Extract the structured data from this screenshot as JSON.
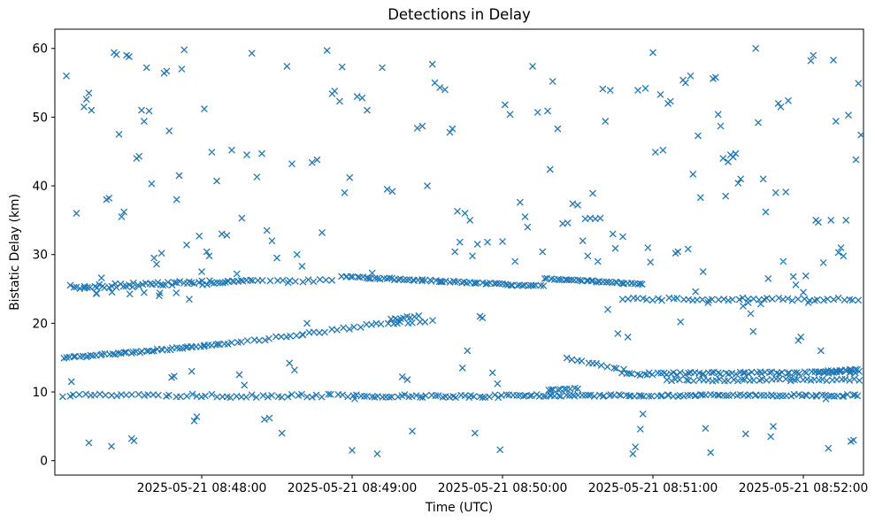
{
  "figure": {
    "background": "#ffffff"
  },
  "chart_data": {
    "type": "scatter",
    "title": "Detections in Delay",
    "xlabel": "Time (UTC)",
    "ylabel": "Bistatic Delay (km)",
    "marker": "x",
    "marker_color": "#1f77b4",
    "grid": false,
    "legend": "none",
    "time_origin": "2025-05-21 08:47:00",
    "xlim_s": [
      1.4,
      324
    ],
    "ylim": [
      -2.1,
      62.8
    ],
    "x_ticks": [
      {
        "t": 60,
        "label": "2025-05-21 08:48:00"
      },
      {
        "t": 120,
        "label": "2025-05-21 08:49:00"
      },
      {
        "t": 180,
        "label": "2025-05-21 08:50:00"
      },
      {
        "t": 240,
        "label": "2025-05-21 08:51:00"
      },
      {
        "t": 300,
        "label": "2025-05-21 08:52:00"
      }
    ],
    "y_ticks": [
      0,
      10,
      20,
      30,
      40,
      50,
      60
    ],
    "streaks": [
      {
        "t0": 5,
        "t1": 58,
        "y0": 9.5,
        "y1": 9.5,
        "n": 26,
        "jitter": 0.2
      },
      {
        "t0": 60,
        "t1": 118,
        "y0": 9.4,
        "y1": 9.5,
        "n": 30,
        "jitter": 0.25
      },
      {
        "t0": 120,
        "t1": 178,
        "y0": 9.4,
        "y1": 9.4,
        "n": 40,
        "jitter": 0.2
      },
      {
        "t0": 180,
        "t1": 238,
        "y0": 9.5,
        "y1": 9.5,
        "n": 45,
        "jitter": 0.15
      },
      {
        "t0": 240,
        "t1": 322,
        "y0": 9.5,
        "y1": 9.5,
        "n": 62,
        "jitter": 0.15
      },
      {
        "t0": 198,
        "t1": 210,
        "y0": 10.3,
        "y1": 10.5,
        "n": 10,
        "jitter": 0.1
      },
      {
        "t0": 5,
        "t1": 70,
        "y0": 14.9,
        "y1": 17.0,
        "n": 55,
        "jitter": 0.12
      },
      {
        "t0": 72,
        "t1": 100,
        "y0": 17.2,
        "y1": 18.3,
        "n": 14,
        "jitter": 0.2
      },
      {
        "t0": 100,
        "t1": 130,
        "y0": 18.4,
        "y1": 19.9,
        "n": 14,
        "jitter": 0.2
      },
      {
        "t0": 132,
        "t1": 152,
        "y0": 20.0,
        "y1": 20.3,
        "n": 9,
        "jitter": 0.15
      },
      {
        "t0": 136,
        "t1": 146,
        "y0": 20.5,
        "y1": 21.0,
        "n": 9,
        "jitter": 0.2
      },
      {
        "t0": 8,
        "t1": 70,
        "y0": 25.3,
        "y1": 26.0,
        "n": 55,
        "jitter": 0.3
      },
      {
        "t0": 70,
        "t1": 80,
        "y0": 26.0,
        "y1": 26.3,
        "n": 10,
        "jitter": 0.1
      },
      {
        "t0": 18,
        "t1": 50,
        "y0": 24.3,
        "y1": 24.6,
        "n": 6,
        "jitter": 0.2
      },
      {
        "t0": 82,
        "t1": 95,
        "y0": 26.2,
        "y1": 26.4,
        "n": 6,
        "jitter": 0.2
      },
      {
        "t0": 95,
        "t1": 112,
        "y0": 26.0,
        "y1": 26.4,
        "n": 8,
        "jitter": 0.2
      },
      {
        "t0": 116,
        "t1": 196,
        "y0": 26.8,
        "y1": 25.4,
        "n": 70,
        "jitter": 0.12
      },
      {
        "t0": 197,
        "t1": 236,
        "y0": 26.5,
        "y1": 25.7,
        "n": 40,
        "jitter": 0.1
      },
      {
        "t0": 228,
        "t1": 322,
        "y0": 23.5,
        "y1": 23.5,
        "n": 48,
        "jitter": 0.2
      },
      {
        "t0": 206,
        "t1": 228,
        "y0": 15.0,
        "y1": 13.2,
        "n": 12,
        "jitter": 0.15
      },
      {
        "t0": 228,
        "t1": 322,
        "y0": 12.6,
        "y1": 12.9,
        "n": 70,
        "jitter": 0.18
      },
      {
        "t0": 246,
        "t1": 322,
        "y0": 11.7,
        "y1": 11.8,
        "n": 45,
        "jitter": 0.15
      },
      {
        "t0": 305,
        "t1": 322,
        "y0": 12.9,
        "y1": 13.3,
        "n": 14,
        "jitter": 0.1
      }
    ],
    "points": [
      [
        6,
        56
      ],
      [
        8,
        11.5
      ],
      [
        10,
        36
      ],
      [
        13,
        51.5
      ],
      [
        14,
        52.6
      ],
      [
        15,
        53.5
      ],
      [
        16,
        51
      ],
      [
        15,
        2.6
      ],
      [
        18,
        24.4
      ],
      [
        20,
        26.6
      ],
      [
        22,
        38
      ],
      [
        23,
        38.2
      ],
      [
        24,
        2.1
      ],
      [
        25,
        59.4
      ],
      [
        26,
        59.1
      ],
      [
        27,
        47.5
      ],
      [
        28,
        35.5
      ],
      [
        29,
        36.2
      ],
      [
        30,
        59
      ],
      [
        31,
        58.8
      ],
      [
        32,
        3.2
      ],
      [
        33,
        2.9
      ],
      [
        34,
        44
      ],
      [
        35,
        44.3
      ],
      [
        36,
        51
      ],
      [
        37,
        49.4
      ],
      [
        38,
        57.2
      ],
      [
        39,
        50.9
      ],
      [
        40,
        40.3
      ],
      [
        41,
        29.5
      ],
      [
        42,
        28.6
      ],
      [
        43,
        24
      ],
      [
        44,
        30.2
      ],
      [
        45,
        56.4
      ],
      [
        46,
        56.7
      ],
      [
        47,
        48
      ],
      [
        48,
        12.1
      ],
      [
        49,
        12.3
      ],
      [
        50,
        38
      ],
      [
        51,
        41.5
      ],
      [
        52,
        57
      ],
      [
        53,
        59.8
      ],
      [
        54,
        31.4
      ],
      [
        55,
        23.5
      ],
      [
        56,
        13
      ],
      [
        57,
        5.8
      ],
      [
        58,
        6.4
      ],
      [
        59,
        32.7
      ],
      [
        60,
        27.5
      ],
      [
        61,
        51.2
      ],
      [
        62,
        30.4
      ],
      [
        63,
        29.8
      ],
      [
        64,
        44.9
      ],
      [
        66,
        40.7
      ],
      [
        68,
        33
      ],
      [
        70,
        32.8
      ],
      [
        72,
        45.2
      ],
      [
        74,
        27.2
      ],
      [
        75,
        12.5
      ],
      [
        76,
        35.3
      ],
      [
        77,
        11
      ],
      [
        78,
        44.5
      ],
      [
        80,
        59.3
      ],
      [
        82,
        41.3
      ],
      [
        84,
        44.7
      ],
      [
        85,
        6
      ],
      [
        86,
        33.5
      ],
      [
        87,
        6.2
      ],
      [
        88,
        32
      ],
      [
        90,
        29.5
      ],
      [
        92,
        4
      ],
      [
        94,
        57.4
      ],
      [
        95,
        14.2
      ],
      [
        96,
        43.2
      ],
      [
        97,
        13.2
      ],
      [
        98,
        30
      ],
      [
        100,
        28.3
      ],
      [
        102,
        20
      ],
      [
        104,
        43.4
      ],
      [
        106,
        43.8
      ],
      [
        108,
        33.2
      ],
      [
        110,
        59.7
      ],
      [
        112,
        53.4
      ],
      [
        113,
        53.8
      ],
      [
        115,
        52.3
      ],
      [
        116,
        57.3
      ],
      [
        117,
        39
      ],
      [
        119,
        41.2
      ],
      [
        120,
        1.5
      ],
      [
        121,
        9
      ],
      [
        122,
        53
      ],
      [
        124,
        52.8
      ],
      [
        126,
        51
      ],
      [
        128,
        27.3
      ],
      [
        130,
        1
      ],
      [
        132,
        57.2
      ],
      [
        134,
        39.5
      ],
      [
        136,
        39.2
      ],
      [
        138,
        20
      ],
      [
        140,
        12.2
      ],
      [
        142,
        11.8
      ],
      [
        144,
        4.3
      ],
      [
        146,
        48.4
      ],
      [
        148,
        48.7
      ],
      [
        150,
        40
      ],
      [
        152,
        57.7
      ],
      [
        153,
        55
      ],
      [
        155,
        54.3
      ],
      [
        157,
        54
      ],
      [
        159,
        47.8
      ],
      [
        160,
        48.3
      ],
      [
        161,
        30.4
      ],
      [
        162,
        36.3
      ],
      [
        163,
        31.8
      ],
      [
        164,
        13.5
      ],
      [
        165,
        36
      ],
      [
        166,
        16
      ],
      [
        167,
        35
      ],
      [
        168,
        29.8
      ],
      [
        169,
        4
      ],
      [
        170,
        31.5
      ],
      [
        171,
        21
      ],
      [
        172,
        20.8
      ],
      [
        174,
        31.8
      ],
      [
        176,
        12.8
      ],
      [
        178,
        11.2
      ],
      [
        179,
        1.6
      ],
      [
        180,
        31.9
      ],
      [
        181,
        51.8
      ],
      [
        183,
        50.4
      ],
      [
        185,
        29
      ],
      [
        187,
        37.6
      ],
      [
        189,
        35.5
      ],
      [
        190,
        34
      ],
      [
        192,
        57.4
      ],
      [
        194,
        50.7
      ],
      [
        196,
        30.4
      ],
      [
        198,
        50.9
      ],
      [
        199,
        42.4
      ],
      [
        200,
        55.2
      ],
      [
        202,
        48.3
      ],
      [
        204,
        34.5
      ],
      [
        206,
        34.6
      ],
      [
        208,
        37.4
      ],
      [
        210,
        37.2
      ],
      [
        212,
        32
      ],
      [
        213,
        35.2
      ],
      [
        214,
        29.8
      ],
      [
        215,
        35.3
      ],
      [
        216,
        38.9
      ],
      [
        217,
        35.2
      ],
      [
        218,
        29
      ],
      [
        219,
        35.3
      ],
      [
        220,
        54.1
      ],
      [
        221,
        49.4
      ],
      [
        222,
        22
      ],
      [
        223,
        53.9
      ],
      [
        224,
        33
      ],
      [
        225,
        30.9
      ],
      [
        226,
        18.5
      ],
      [
        228,
        32.6
      ],
      [
        230,
        18
      ],
      [
        232,
        1
      ],
      [
        233,
        2
      ],
      [
        234,
        53.9
      ],
      [
        235,
        4.6
      ],
      [
        236,
        6.8
      ],
      [
        237,
        54.2
      ],
      [
        238,
        31
      ],
      [
        239,
        28.9
      ],
      [
        240,
        59.4
      ],
      [
        241,
        44.9
      ],
      [
        243,
        53.3
      ],
      [
        244,
        45.2
      ],
      [
        246,
        52
      ],
      [
        247,
        52.3
      ],
      [
        249,
        30.2
      ],
      [
        250,
        30.4
      ],
      [
        251,
        20.2
      ],
      [
        252,
        55.4
      ],
      [
        253,
        55
      ],
      [
        254,
        30.8
      ],
      [
        255,
        56
      ],
      [
        256,
        41.7
      ],
      [
        257,
        24.6
      ],
      [
        258,
        47.3
      ],
      [
        259,
        38.3
      ],
      [
        260,
        27.5
      ],
      [
        261,
        4.7
      ],
      [
        262,
        23
      ],
      [
        263,
        1.2
      ],
      [
        264,
        55.6
      ],
      [
        265,
        55.8
      ],
      [
        266,
        50.4
      ],
      [
        267,
        48.7
      ],
      [
        268,
        44
      ],
      [
        269,
        38.5
      ],
      [
        270,
        43.5
      ],
      [
        271,
        44.5
      ],
      [
        272,
        44.2
      ],
      [
        273,
        44.7
      ],
      [
        274,
        40.4
      ],
      [
        275,
        41
      ],
      [
        276,
        22.5
      ],
      [
        277,
        3.9
      ],
      [
        278,
        23
      ],
      [
        279,
        21.4
      ],
      [
        280,
        18.8
      ],
      [
        281,
        60
      ],
      [
        282,
        49.2
      ],
      [
        283,
        22.8
      ],
      [
        284,
        41
      ],
      [
        285,
        36.2
      ],
      [
        286,
        26.5
      ],
      [
        287,
        3.5
      ],
      [
        288,
        5
      ],
      [
        289,
        39
      ],
      [
        290,
        52
      ],
      [
        291,
        51.5
      ],
      [
        292,
        29
      ],
      [
        293,
        39.1
      ],
      [
        294,
        52.4
      ],
      [
        295,
        12
      ],
      [
        296,
        26.8
      ],
      [
        297,
        25.6
      ],
      [
        298,
        17.5
      ],
      [
        299,
        18
      ],
      [
        300,
        24.5
      ],
      [
        301,
        26.9
      ],
      [
        302,
        23
      ],
      [
        303,
        58.2
      ],
      [
        304,
        59
      ],
      [
        305,
        35
      ],
      [
        306,
        34.7
      ],
      [
        307,
        16
      ],
      [
        308,
        28.8
      ],
      [
        309,
        9
      ],
      [
        310,
        1.8
      ],
      [
        311,
        35
      ],
      [
        312,
        58.3
      ],
      [
        313,
        49.4
      ],
      [
        314,
        30.3
      ],
      [
        315,
        31
      ],
      [
        316,
        29.8
      ],
      [
        317,
        35
      ],
      [
        318,
        50.3
      ],
      [
        319,
        2.8
      ],
      [
        320,
        3
      ],
      [
        321,
        43.8
      ],
      [
        322,
        54.9
      ],
      [
        323,
        47.4
      ]
    ]
  }
}
